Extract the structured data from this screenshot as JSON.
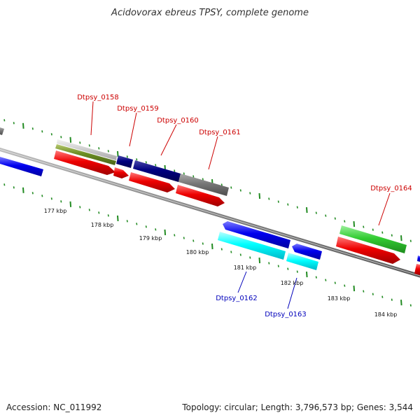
{
  "title": "Acidovorax ebreus TPSY, complete genome",
  "footer": {
    "accession": "Accession: NC_011992",
    "summary": "Topology: circular; Length: 3,796,573 bp; Genes: 3,544"
  },
  "colors": {
    "forward_label": "#cc0000",
    "reverse_label": "#0000bb",
    "backbone": "#808080",
    "ticks": "#228b22"
  },
  "ruler": [
    "177 kbp",
    "178 kbp",
    "179 kbp",
    "180 kbp",
    "181 kbp",
    "182 kbp",
    "183 kbp",
    "184 kbp"
  ],
  "gene_labels": {
    "forward": [
      "Dtpsy_0158",
      "Dtpsy_0159",
      "Dtpsy_0160",
      "Dtpsy_0161",
      "Dtpsy_0164"
    ],
    "reverse": [
      "Dtpsy_0162",
      "Dtpsy_0163"
    ]
  }
}
